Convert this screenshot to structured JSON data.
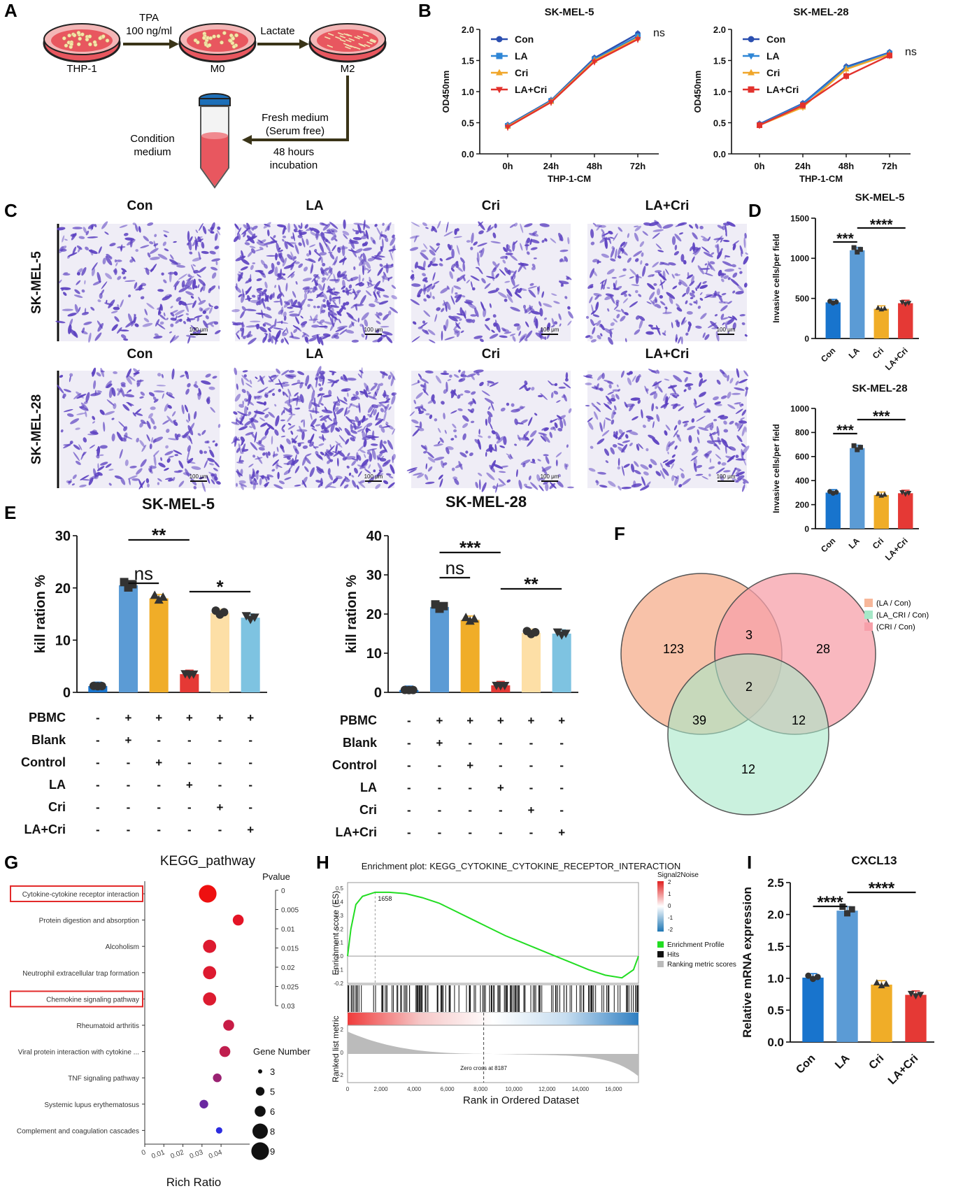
{
  "panel_letters": [
    "A",
    "B",
    "C",
    "D",
    "E",
    "F",
    "G",
    "H",
    "I"
  ],
  "panel_a": {
    "dish_labels": [
      "THP-1",
      "M0",
      "M2"
    ],
    "step1": [
      "TPA",
      "100 ng/ml"
    ],
    "step2": "Lactate",
    "step3": [
      "Fresh medium",
      "(Serum free)"
    ],
    "step4": [
      "48 hours",
      "incubation"
    ],
    "tube_label": [
      "Condition",
      "medium"
    ],
    "colors": {
      "dish_fill": "#e8575f",
      "dish_rim": "#222222",
      "tube_cap": "#1d6fb8",
      "arrow": "#3a3418"
    }
  },
  "panel_c": {
    "row_labels": [
      "SK-MEL-5",
      "SK-MEL-28"
    ],
    "col_labels": [
      "Con",
      "LA",
      "Cri",
      "LA+Cri"
    ],
    "scale_bar": "100 μm",
    "stain_color": "#5a3fc0"
  },
  "panel_f": {
    "legend": [
      "(LA / Con)",
      "(LA_CRI / Con)",
      "(CRI / Con)"
    ],
    "colors": [
      "#f7b79a",
      "#a6e8c8",
      "#f7a0aa"
    ],
    "regions": {
      "la_only": "123",
      "la_cri_overlap": "3",
      "cri_only": "28",
      "center": "2",
      "la_lacri": "39",
      "cri_lacri": "12",
      "lacri_only": "12"
    }
  },
  "chart_data": [
    {
      "id": "B1",
      "type": "line",
      "title": "SK-MEL-5",
      "xlabel": "THP-1-CM",
      "ylabel": "OD450nm",
      "categories": [
        "0h",
        "24h",
        "48h",
        "72h"
      ],
      "ylim": [
        0,
        2.0
      ],
      "yticks": [
        "0.0",
        "0.5",
        "1.0",
        "1.5",
        "2.0"
      ],
      "annotation": "ns",
      "series": [
        {
          "name": "Con",
          "color": "#2b4fb0",
          "marker": "circle",
          "values": [
            0.46,
            0.86,
            1.54,
            1.93
          ]
        },
        {
          "name": "LA",
          "color": "#2f86d6",
          "marker": "square",
          "values": [
            0.45,
            0.85,
            1.52,
            1.89
          ]
        },
        {
          "name": "Cri",
          "color": "#f0a62a",
          "marker": "triangle-up",
          "values": [
            0.44,
            0.84,
            1.5,
            1.86
          ]
        },
        {
          "name": "LA+Cri",
          "color": "#e2322d",
          "marker": "triangle-down",
          "values": [
            0.43,
            0.83,
            1.48,
            1.84
          ]
        }
      ]
    },
    {
      "id": "B2",
      "type": "line",
      "title": "SK-MEL-28",
      "xlabel": "THP-1-CM",
      "ylabel": "OD450nm",
      "categories": [
        "0h",
        "24h",
        "48h",
        "72h"
      ],
      "ylim": [
        0,
        2.0
      ],
      "yticks": [
        "0.0",
        "0.5",
        "1.0",
        "1.5",
        "2.0"
      ],
      "annotation": "ns",
      "series": [
        {
          "name": "Con",
          "color": "#2b4fb0",
          "marker": "circle",
          "values": [
            0.48,
            0.81,
            1.4,
            1.63
          ]
        },
        {
          "name": "LA",
          "color": "#2f86d6",
          "marker": "triangle-down",
          "values": [
            0.47,
            0.8,
            1.38,
            1.62
          ]
        },
        {
          "name": "Cri",
          "color": "#f0a62a",
          "marker": "triangle-up",
          "values": [
            0.46,
            0.75,
            1.36,
            1.6
          ]
        },
        {
          "name": "LA+Cri",
          "color": "#e2322d",
          "marker": "square",
          "values": [
            0.46,
            0.78,
            1.25,
            1.58
          ]
        }
      ]
    },
    {
      "id": "D1",
      "type": "bar",
      "title": "SK-MEL-5",
      "ylabel": "Invasive cells/per field",
      "categories": [
        "Con",
        "LA",
        "Cri",
        "LA+Cri"
      ],
      "values": [
        450,
        1100,
        370,
        440
      ],
      "colors": [
        "#1874cd",
        "#5b9bd5",
        "#f0ad28",
        "#e53935"
      ],
      "ylim": [
        0,
        1500
      ],
      "yticks": [
        "0",
        "500",
        "1000",
        "1500"
      ],
      "brackets": [
        {
          "label": "***",
          "from": 0,
          "to": 1
        },
        {
          "label": "****",
          "from": 1,
          "to": 3
        }
      ]
    },
    {
      "id": "D2",
      "type": "bar",
      "title": "SK-MEL-28",
      "ylabel": "Invasive cells/per field",
      "categories": [
        "Con",
        "LA",
        "Cri",
        "LA+Cri"
      ],
      "values": [
        300,
        670,
        280,
        295
      ],
      "colors": [
        "#1874cd",
        "#5b9bd5",
        "#f0ad28",
        "#e53935"
      ],
      "ylim": [
        0,
        1000
      ],
      "yticks": [
        "0",
        "200",
        "400",
        "600",
        "800",
        "1000"
      ],
      "brackets": [
        {
          "label": "***",
          "from": 0,
          "to": 1
        },
        {
          "label": "***",
          "from": 1,
          "to": 3
        }
      ]
    },
    {
      "id": "E1",
      "type": "bar",
      "title": "SK-MEL-5",
      "ylabel": "kill ration %",
      "values": [
        1.2,
        20.5,
        18.0,
        3.5,
        15.2,
        14.3
      ],
      "colors": [
        "#1874cd",
        "#5b9bd5",
        "#f0ad28",
        "#e53935",
        "#fddfa6",
        "#7ec3e1"
      ],
      "ylim": [
        0,
        30
      ],
      "yticks": [
        "0",
        "10",
        "20",
        "30"
      ],
      "brackets": [
        {
          "label": "ns",
          "from": 1,
          "to": 2
        },
        {
          "label": "**",
          "from": 1,
          "to": 3
        },
        {
          "label": "*",
          "from": 3,
          "to": 5
        }
      ],
      "table": [
        {
          "row": "PBMC",
          "marks": [
            "-",
            "+",
            "+",
            "+",
            "+",
            "+"
          ]
        },
        {
          "row": "Blank",
          "marks": [
            "-",
            "+",
            "-",
            "-",
            "-",
            "-"
          ]
        },
        {
          "row": "Control",
          "marks": [
            "-",
            "-",
            "+",
            "-",
            "-",
            "-"
          ]
        },
        {
          "row": "LA",
          "marks": [
            "-",
            "-",
            "-",
            "+",
            "-",
            "-"
          ]
        },
        {
          "row": "Cri",
          "marks": [
            "-",
            "-",
            "-",
            "-",
            "+",
            "-"
          ]
        },
        {
          "row": "LA+Cri",
          "marks": [
            "-",
            "-",
            "-",
            "-",
            "-",
            "+"
          ]
        }
      ]
    },
    {
      "id": "E2",
      "type": "bar",
      "title": "SK-MEL-28",
      "ylabel": "kill ration %",
      "values": [
        0.6,
        21.8,
        18.5,
        1.8,
        15.2,
        15.0
      ],
      "colors": [
        "#1874cd",
        "#5b9bd5",
        "#f0ad28",
        "#e53935",
        "#fddfa6",
        "#7ec3e1"
      ],
      "ylim": [
        0,
        40
      ],
      "yticks": [
        "0",
        "10",
        "20",
        "30",
        "40"
      ],
      "brackets": [
        {
          "label": "ns",
          "from": 1,
          "to": 2
        },
        {
          "label": "***",
          "from": 1,
          "to": 3
        },
        {
          "label": "**",
          "from": 3,
          "to": 5
        }
      ],
      "table": [
        {
          "row": "PBMC",
          "marks": [
            "-",
            "+",
            "+",
            "+",
            "+",
            "+"
          ]
        },
        {
          "row": "Blank",
          "marks": [
            "-",
            "+",
            "-",
            "-",
            "-",
            "-"
          ]
        },
        {
          "row": "Control",
          "marks": [
            "-",
            "-",
            "+",
            "-",
            "-",
            "-"
          ]
        },
        {
          "row": "LA",
          "marks": [
            "-",
            "-",
            "-",
            "+",
            "-",
            "-"
          ]
        },
        {
          "row": "Cri",
          "marks": [
            "-",
            "-",
            "-",
            "-",
            "+",
            "-"
          ]
        },
        {
          "row": "LA+Cri",
          "marks": [
            "-",
            "-",
            "-",
            "-",
            "-",
            "+"
          ]
        }
      ]
    },
    {
      "id": "G",
      "type": "scatter",
      "title": "KEGG_pathway",
      "xlabel": "Rich Ratio",
      "xticks": [
        "0",
        "0.01",
        "0.02",
        "0.03",
        "0.04"
      ],
      "xlim": [
        0,
        0.055
      ],
      "pvalue_title": "Pvalue",
      "pvalue_ticks": [
        "0",
        "0.005",
        "0.01",
        "0.015",
        "0.02",
        "0.025",
        "0.03"
      ],
      "size_title": "Gene Number",
      "size_ticks": [
        "3",
        "5",
        "6",
        "8",
        "9"
      ],
      "highlighted": [
        "Cytokine-cytokine receptor interaction",
        "Chemokine signaling pathway"
      ],
      "points": [
        {
          "term": "Cytokine-cytokine receptor interaction",
          "x": 0.033,
          "genes": 9,
          "color": "#ee1010"
        },
        {
          "term": "Protein digestion and absorption",
          "x": 0.049,
          "genes": 6,
          "color": "#e41426"
        },
        {
          "term": "Alcoholism",
          "x": 0.034,
          "genes": 7,
          "color": "#dd1a30"
        },
        {
          "term": "Neutrophil extracellular trap formation",
          "x": 0.034,
          "genes": 7,
          "color": "#dd1a30"
        },
        {
          "term": "Chemokine signaling pathway",
          "x": 0.034,
          "genes": 7,
          "color": "#dc1b30"
        },
        {
          "term": "Rheumatoid arthritis",
          "x": 0.044,
          "genes": 6,
          "color": "#c81c46"
        },
        {
          "term": "Viral protein interaction with cytokine ...",
          "x": 0.042,
          "genes": 6,
          "color": "#c01e4e"
        },
        {
          "term": "TNF signaling pathway",
          "x": 0.038,
          "genes": 5,
          "color": "#9a2272"
        },
        {
          "term": "Systemic lupus erythematosus",
          "x": 0.031,
          "genes": 5,
          "color": "#6a28a0"
        },
        {
          "term": "Complement and coagulation cascades",
          "x": 0.039,
          "genes": 4,
          "color": "#2c2ce0"
        }
      ]
    },
    {
      "id": "H",
      "type": "line",
      "title": "Enrichment plot: KEGG_CYTOKINE_CYTOKINE_RECEPTOR_INTERACTION",
      "xlabel": "Rank in Ordered Dataset",
      "ylabel_top": "Enrichment score (ES)",
      "ylabel_bottom": "Ranked list metric",
      "xlim": [
        0,
        17500
      ],
      "xticks": [
        "0",
        "2,000",
        "4,000",
        "6,000",
        "8,000",
        "10,000",
        "12,000",
        "14,000",
        "16,000"
      ],
      "ylim_top": [
        -0.2,
        0.5
      ],
      "yticks_top": [
        "0.5",
        "0.4",
        "0.3",
        "0.2",
        "0.1",
        "0.0",
        "-0.1",
        "-0.2"
      ],
      "yticks_bottom": [
        "2",
        "0",
        "-2"
      ],
      "peak_label": "1658",
      "zero_cross": "Zero cross at 8187",
      "colorbar_title": "Signal2Noise",
      "colorbar_ticks": [
        "2",
        "1",
        "0",
        "-1",
        "-2"
      ],
      "legend": [
        "Enrichment Profile",
        "Hits",
        "Ranking metric scores"
      ],
      "legend_colors": [
        "#22dd22",
        "#111111",
        "#bbbbbb"
      ],
      "es_curve": [
        [
          0,
          0
        ],
        [
          200,
          0.2
        ],
        [
          500,
          0.38
        ],
        [
          900,
          0.44
        ],
        [
          1658,
          0.47
        ],
        [
          2500,
          0.47
        ],
        [
          3500,
          0.46
        ],
        [
          4500,
          0.43
        ],
        [
          5500,
          0.39
        ],
        [
          6500,
          0.33
        ],
        [
          7500,
          0.27
        ],
        [
          8500,
          0.21
        ],
        [
          9500,
          0.15
        ],
        [
          10500,
          0.1
        ],
        [
          11500,
          0.05
        ],
        [
          12500,
          0.0
        ],
        [
          13500,
          -0.05
        ],
        [
          14500,
          -0.1
        ],
        [
          15500,
          -0.14
        ],
        [
          16500,
          -0.16
        ],
        [
          17200,
          -0.1
        ],
        [
          17500,
          0.0
        ]
      ]
    },
    {
      "id": "I",
      "type": "bar",
      "title": "CXCL13",
      "ylabel": "Relative mRNA expression",
      "categories": [
        "Con",
        "LA",
        "Cri",
        "LA+Cri"
      ],
      "values": [
        1.01,
        2.06,
        0.9,
        0.74
      ],
      "colors": [
        "#1874cd",
        "#5b9bd5",
        "#f0ad28",
        "#e53935"
      ],
      "ylim": [
        0,
        2.5
      ],
      "yticks": [
        "0.0",
        "0.5",
        "1.0",
        "1.5",
        "2.0",
        "2.5"
      ],
      "brackets": [
        {
          "label": "****",
          "from": 0,
          "to": 1
        },
        {
          "label": "****",
          "from": 1,
          "to": 3
        }
      ]
    }
  ]
}
